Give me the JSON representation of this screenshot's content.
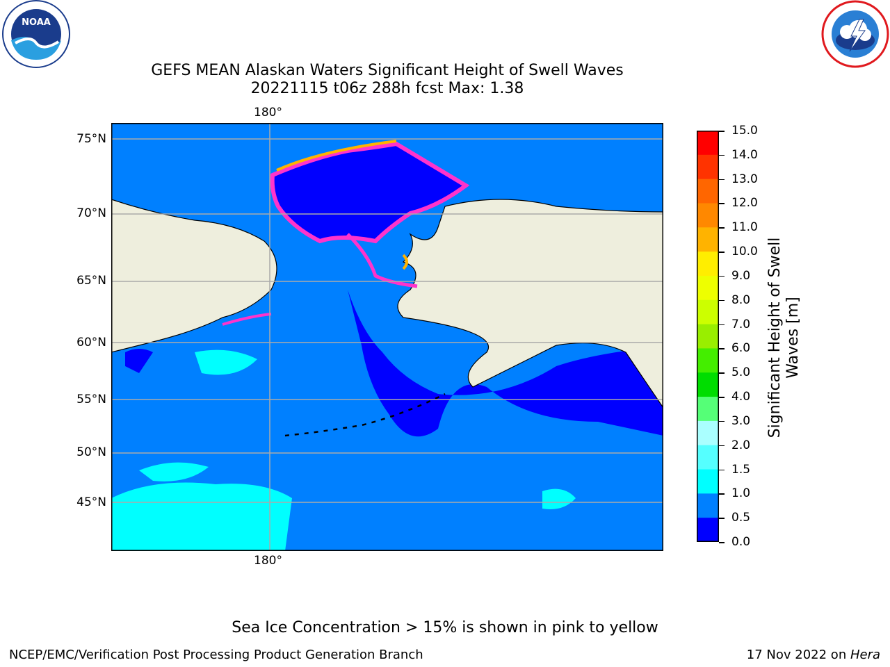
{
  "title": {
    "line1": "GEFS MEAN Alaskan Waters Significant Height of Swell Waves",
    "line2": "20221115 t06z 288h fcst   Max: 1.38"
  },
  "logos": {
    "left": {
      "acronym": "NOAA",
      "ring_text": "NATIONAL OCEANIC AND ATMOSPHERIC ADMINISTRATION · U.S. DEPARTMENT OF COMMERCE",
      "color": "#1a3c8c"
    },
    "right": {
      "ring_text": "NATIONAL WEATHER SERVICE",
      "color": "#e0191e"
    }
  },
  "map": {
    "lon_label_top": "180°",
    "lon_label_bottom": "180°",
    "lat_labels": [
      "75°N",
      "70°N",
      "65°N",
      "60°N",
      "55°N",
      "50°N",
      "45°N"
    ],
    "land_color": "#eeeedd",
    "ocean_colors": {
      "low": "#0000ff",
      "mid": "#0080ff",
      "high": "#00ffff"
    },
    "ice_colors": [
      "#ff33cc",
      "#ffb300",
      "#ffee00"
    ]
  },
  "colorbar": {
    "title": "Significant Height of Swell Waves [m]",
    "ticks": [
      "15.0",
      "14.0",
      "13.0",
      "12.0",
      "11.0",
      "10.0",
      "9.0",
      "8.0",
      "7.0",
      "6.0",
      "5.0",
      "4.0",
      "3.0",
      "2.0",
      "1.5",
      "1.0",
      "0.5",
      "0.0"
    ],
    "colors_top_to_bottom": [
      "#ff0000",
      "#ff3300",
      "#ff6600",
      "#ff8800",
      "#ffb300",
      "#ffee00",
      "#eeff00",
      "#ccff00",
      "#99ee00",
      "#44ee00",
      "#00dd00",
      "#55ff77",
      "#aaffff",
      "#55ffff",
      "#00ffff",
      "#0080ff",
      "#0000ff"
    ]
  },
  "note": "Sea Ice Concentration > 15% is shown in pink to yellow",
  "footer": {
    "left": "NCEP/EMC/Verification Post Processing Product Generation Branch",
    "right_prefix": "17 Nov 2022 on ",
    "right_italic": "Hera"
  }
}
